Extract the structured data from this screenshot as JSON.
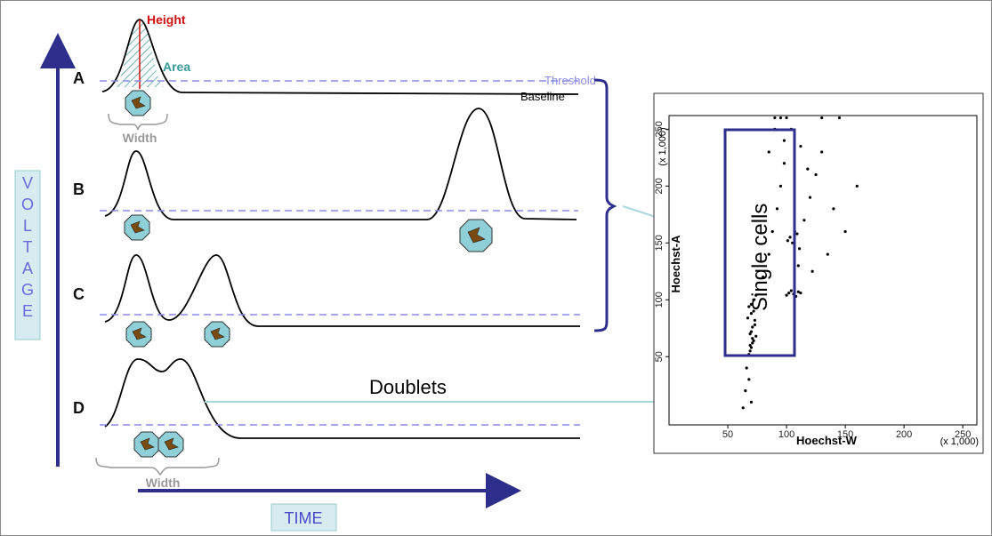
{
  "diagram": {
    "rows": [
      "A",
      "B",
      "C",
      "D"
    ],
    "voltage": "V O L T A G E",
    "time": "TIME",
    "height": "Height",
    "area": "Area",
    "threshold": "Threshold",
    "baseline": "Baseline",
    "width_a": "Width",
    "width_d": "Width",
    "doublets": "Doublets",
    "single_cells": "Single cells"
  },
  "chart_data": {
    "type": "scatter",
    "x_label": "Hoechst-W",
    "y_label": "Hoechst-A",
    "x_unit": "(x 1,000)",
    "y_unit": "(x 1,000)",
    "xlim": [
      0,
      262
    ],
    "ylim": [
      -10,
      262
    ],
    "xticks": [
      50,
      100,
      150,
      200,
      250
    ],
    "yticks": [
      50,
      100,
      150,
      200,
      250
    ],
    "color": "#000000",
    "x": [
      68,
      70,
      72,
      69,
      71,
      73,
      70,
      68,
      72,
      74,
      69,
      71,
      70,
      73,
      67,
      72,
      70,
      69,
      71,
      74,
      66,
      68,
      65,
      70,
      63,
      80,
      85,
      88,
      92,
      95,
      98,
      100,
      102,
      104,
      106,
      108,
      110,
      112,
      105,
      103,
      107,
      109,
      101,
      111,
      115,
      120,
      125,
      130,
      98,
      104,
      112,
      118,
      140,
      150,
      160,
      90,
      95,
      100,
      130,
      145,
      85,
      90,
      110,
      122,
      135
    ],
    "y": [
      52,
      58,
      64,
      70,
      76,
      82,
      88,
      94,
      100,
      104,
      60,
      66,
      72,
      78,
      84,
      90,
      96,
      55,
      62,
      68,
      40,
      30,
      20,
      10,
      5,
      120,
      140,
      160,
      180,
      200,
      220,
      104,
      106,
      108,
      105,
      103,
      107,
      106,
      150,
      155,
      160,
      158,
      152,
      145,
      170,
      190,
      210,
      230,
      240,
      250,
      235,
      215,
      180,
      160,
      200,
      260,
      260,
      260,
      260,
      260,
      230,
      250,
      130,
      125,
      140
    ]
  }
}
